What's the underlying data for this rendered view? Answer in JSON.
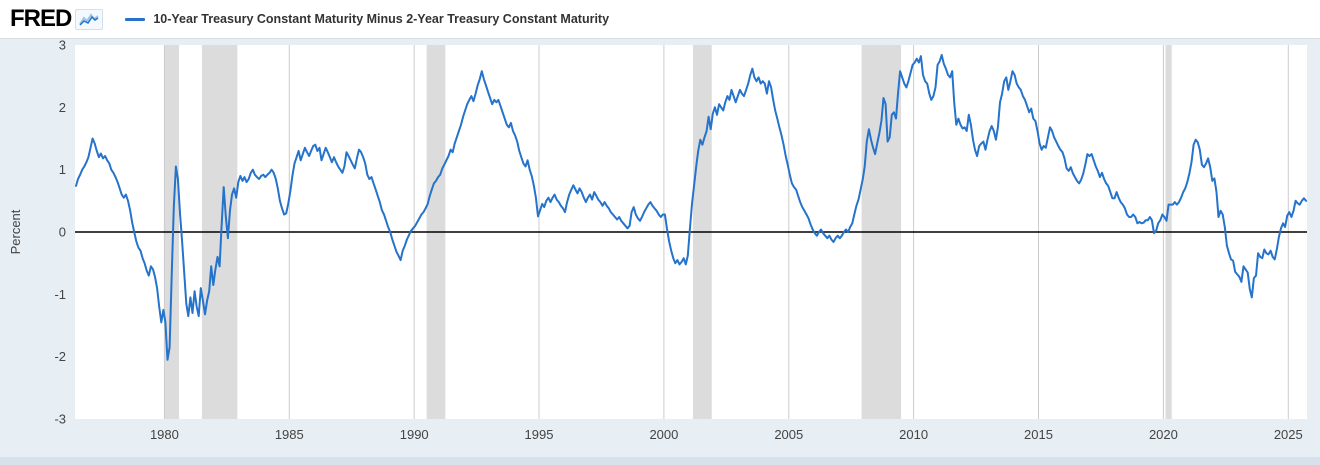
{
  "header": {
    "logo_text": "FRED",
    "legend_label": "10-Year Treasury Constant Maturity Minus 2-Year Treasury Constant Maturity"
  },
  "colors": {
    "line": "#2573cb",
    "recession": "#dcdcdc",
    "grid": "#cccccc",
    "zero_line": "#000000",
    "plot_bg": "#ffffff",
    "page_bg": "#e7eef4",
    "header_bg": "#ffffff",
    "footer": "#d6e1eb",
    "axis_text": "#444444",
    "legend_text": "#333333"
  },
  "chart_data": {
    "type": "line",
    "title": "10-Year Treasury Constant Maturity Minus 2-Year Treasury Constant Maturity",
    "xlabel": "",
    "ylabel": "Percent",
    "ylim": [
      -3,
      3
    ],
    "yticks": [
      3,
      2,
      1,
      0,
      -1,
      -2,
      -3
    ],
    "xticks": [
      1980,
      1985,
      1990,
      1995,
      2000,
      2005,
      2010,
      2015,
      2020,
      2025
    ],
    "x_range": [
      1976.42,
      2025.75
    ],
    "grid": "vertical-only",
    "legend_position": "top-header",
    "recessions": [
      [
        1980.0,
        1980.583
      ],
      [
        1981.5,
        1982.917
      ],
      [
        1990.5,
        1991.25
      ],
      [
        2001.167,
        2001.917
      ],
      [
        2007.917,
        2009.5
      ],
      [
        2020.083,
        2020.333
      ]
    ],
    "series": {
      "name": "10-Year Treasury Constant Maturity Minus 2-Year Treasury Constant Maturity",
      "units": "Percent",
      "frequency": "monthly",
      "values_by_year": {
        "1976": [
          null,
          null,
          null,
          null,
          null,
          0.74,
          0.85,
          0.92,
          1.0,
          1.05,
          1.12,
          1.2
        ],
        "1977": [
          1.35,
          1.5,
          1.42,
          1.3,
          1.2,
          1.26,
          1.18,
          1.22,
          1.15,
          1.1,
          1.0,
          0.95
        ],
        "1978": [
          0.88,
          0.8,
          0.7,
          0.6,
          0.55,
          0.6,
          0.5,
          0.35,
          0.15,
          0.0,
          -0.15,
          -0.25
        ],
        "1979": [
          -0.3,
          -0.42,
          -0.5,
          -0.62,
          -0.7,
          -0.55,
          -0.6,
          -0.72,
          -0.9,
          -1.2,
          -1.45,
          -1.25
        ],
        "1980": [
          -1.45,
          -2.05,
          -1.85,
          -0.7,
          0.4,
          1.05,
          0.85,
          0.3,
          -0.15,
          -0.65,
          -1.15,
          -1.35
        ],
        "1981": [
          -1.05,
          -1.3,
          -0.95,
          -1.2,
          -1.35,
          -0.9,
          -1.1,
          -1.32,
          -1.1,
          -0.95,
          -0.55,
          -0.85
        ],
        "1982": [
          -0.6,
          -0.4,
          -0.55,
          0.1,
          0.72,
          0.25,
          -0.1,
          0.35,
          0.6,
          0.7,
          0.55,
          0.8
        ],
        "1983": [
          0.9,
          0.82,
          0.88,
          0.8,
          0.85,
          0.95,
          1.0,
          0.92,
          0.88,
          0.85,
          0.9,
          0.92
        ],
        "1984": [
          0.88,
          0.92,
          0.95,
          1.0,
          0.95,
          0.85,
          0.7,
          0.5,
          0.38,
          0.28,
          0.3,
          0.45
        ],
        "1985": [
          0.65,
          0.9,
          1.1,
          1.2,
          1.3,
          1.15,
          1.25,
          1.35,
          1.28,
          1.22,
          1.3,
          1.38
        ],
        "1986": [
          1.4,
          1.3,
          1.35,
          1.15,
          1.25,
          1.35,
          1.28,
          1.2,
          1.12,
          1.2,
          1.12,
          1.05
        ],
        "1987": [
          1.0,
          0.95,
          1.05,
          1.28,
          1.22,
          1.15,
          1.08,
          1.02,
          1.18,
          1.32,
          1.28,
          1.2
        ],
        "1988": [
          1.1,
          0.92,
          0.85,
          0.88,
          0.78,
          0.68,
          0.58,
          0.48,
          0.35,
          0.28,
          0.18,
          0.08
        ],
        "1989": [
          0.0,
          -0.12,
          -0.22,
          -0.32,
          -0.38,
          -0.45,
          -0.3,
          -0.22,
          -0.12,
          -0.05,
          0.02,
          0.06
        ],
        "1990": [
          0.1,
          0.16,
          0.22,
          0.28,
          0.32,
          0.38,
          0.45,
          0.58,
          0.68,
          0.78,
          0.82,
          0.88
        ],
        "1991": [
          0.92,
          1.02,
          1.08,
          1.15,
          1.22,
          1.32,
          1.28,
          1.42,
          1.52,
          1.62,
          1.72,
          1.85
        ],
        "1992": [
          1.95,
          2.05,
          2.12,
          2.18,
          2.1,
          2.22,
          2.35,
          2.45,
          2.58,
          2.45,
          2.35,
          2.25
        ],
        "1993": [
          2.15,
          2.05,
          2.12,
          2.08,
          2.12,
          2.02,
          1.92,
          1.82,
          1.72,
          1.68,
          1.75,
          1.62
        ],
        "1994": [
          1.55,
          1.45,
          1.3,
          1.2,
          1.1,
          1.05,
          1.15,
          1.0,
          0.9,
          0.75,
          0.55,
          0.25
        ],
        "1995": [
          0.35,
          0.45,
          0.4,
          0.5,
          0.55,
          0.48,
          0.55,
          0.6,
          0.52,
          0.48,
          0.42,
          0.38
        ],
        "1996": [
          0.32,
          0.48,
          0.6,
          0.68,
          0.75,
          0.68,
          0.62,
          0.7,
          0.64,
          0.55,
          0.48,
          0.55
        ],
        "1997": [
          0.6,
          0.52,
          0.64,
          0.58,
          0.52,
          0.48,
          0.42,
          0.48,
          0.42,
          0.38,
          0.32,
          0.28
        ],
        "1998": [
          0.24,
          0.2,
          0.24,
          0.18,
          0.14,
          0.1,
          0.06,
          0.1,
          0.32,
          0.4,
          0.28,
          0.22
        ],
        "1999": [
          0.18,
          0.24,
          0.32,
          0.38,
          0.44,
          0.48,
          0.42,
          0.38,
          0.34,
          0.28,
          0.24,
          0.28
        ],
        "2000": [
          0.28,
          0.05,
          -0.15,
          -0.3,
          -0.42,
          -0.5,
          -0.45,
          -0.52,
          -0.48,
          -0.42,
          -0.52,
          -0.38
        ],
        "2001": [
          0.05,
          0.45,
          0.75,
          1.05,
          1.3,
          1.48,
          1.4,
          1.52,
          1.62,
          1.85,
          1.65,
          1.9
        ],
        "2002": [
          2.0,
          1.88,
          2.05,
          2.0,
          1.95,
          2.08,
          2.18,
          2.12,
          2.28,
          2.18,
          2.08,
          2.18
        ],
        "2003": [
          2.28,
          2.22,
          2.18,
          2.28,
          2.38,
          2.52,
          2.62,
          2.48,
          2.42,
          2.48,
          2.38,
          2.42
        ],
        "2004": [
          2.38,
          2.22,
          2.42,
          2.32,
          2.12,
          1.95,
          1.82,
          1.68,
          1.55,
          1.4,
          1.22,
          1.08
        ],
        "2005": [
          0.92,
          0.78,
          0.72,
          0.68,
          0.58,
          0.48,
          0.4,
          0.34,
          0.28,
          0.22,
          0.12,
          0.04
        ],
        "2006": [
          -0.02,
          -0.06,
          0.0,
          0.04,
          -0.02,
          -0.06,
          -0.1,
          -0.06,
          -0.12,
          -0.16,
          -0.1,
          -0.06
        ],
        "2007": [
          -0.1,
          -0.06,
          0.0,
          0.04,
          0.0,
          0.08,
          0.14,
          0.28,
          0.42,
          0.52,
          0.68,
          0.84
        ],
        "2008": [
          1.05,
          1.45,
          1.65,
          1.48,
          1.35,
          1.25,
          1.42,
          1.58,
          1.78,
          2.15,
          2.05,
          1.45
        ],
        "2009": [
          1.52,
          1.88,
          1.92,
          1.82,
          2.22,
          2.58,
          2.48,
          2.38,
          2.32,
          2.42,
          2.55,
          2.68
        ],
        "2010": [
          2.72,
          2.78,
          2.72,
          2.82,
          2.52,
          2.42,
          2.38,
          2.22,
          2.12,
          2.18,
          2.32,
          2.68
        ],
        "2011": [
          2.74,
          2.84,
          2.7,
          2.62,
          2.52,
          2.48,
          2.58,
          2.08,
          1.72,
          1.82,
          1.72,
          1.66
        ],
        "2012": [
          1.68,
          1.62,
          1.88,
          1.72,
          1.48,
          1.32,
          1.22,
          1.38,
          1.42,
          1.45,
          1.32,
          1.48
        ],
        "2013": [
          1.62,
          1.7,
          1.62,
          1.48,
          1.68,
          2.08,
          2.22,
          2.42,
          2.48,
          2.28,
          2.42,
          2.58
        ],
        "2014": [
          2.52,
          2.38,
          2.32,
          2.28,
          2.18,
          2.12,
          2.02,
          1.92,
          1.98,
          1.82,
          1.78,
          1.62
        ],
        "2015": [
          1.42,
          1.32,
          1.38,
          1.35,
          1.52,
          1.68,
          1.62,
          1.52,
          1.45,
          1.38,
          1.32,
          1.28
        ],
        "2016": [
          1.18,
          1.02,
          0.98,
          1.04,
          0.94,
          0.88,
          0.82,
          0.78,
          0.84,
          0.94,
          1.08,
          1.25
        ],
        "2017": [
          1.22,
          1.25,
          1.15,
          1.05,
          0.98,
          0.88,
          0.95,
          0.85,
          0.78,
          0.74,
          0.64,
          0.54
        ],
        "2018": [
          0.54,
          0.64,
          0.55,
          0.48,
          0.44,
          0.38,
          0.28,
          0.24,
          0.24,
          0.28,
          0.24,
          0.14
        ],
        "2019": [
          0.16,
          0.14,
          0.15,
          0.19,
          0.19,
          0.24,
          0.19,
          -0.02,
          0.02,
          0.14,
          0.19,
          0.28
        ],
        "2020": [
          0.24,
          0.18,
          0.44,
          0.44,
          0.44,
          0.48,
          0.44,
          0.48,
          0.55,
          0.64,
          0.7,
          0.8
        ],
        "2021": [
          0.94,
          1.12,
          1.4,
          1.48,
          1.44,
          1.32,
          1.08,
          1.04,
          1.1,
          1.18,
          1.04,
          0.82
        ],
        "2022": [
          0.86,
          0.64,
          0.24,
          0.34,
          0.28,
          0.08,
          -0.22,
          -0.34,
          -0.44,
          -0.46,
          -0.64,
          -0.68
        ],
        "2023": [
          -0.72,
          -0.8,
          -0.55,
          -0.6,
          -0.65,
          -0.92,
          -1.05,
          -0.74,
          -0.7,
          -0.34,
          -0.4,
          -0.42
        ],
        "2024": [
          -0.28,
          -0.34,
          -0.36,
          -0.3,
          -0.4,
          -0.44,
          -0.28,
          -0.08,
          0.06,
          0.14,
          0.08,
          0.26
        ],
        "2025": [
          0.32,
          0.24,
          0.34,
          0.5,
          0.46,
          0.44,
          0.5,
          0.54,
          0.5,
          null,
          null,
          null
        ]
      }
    }
  }
}
